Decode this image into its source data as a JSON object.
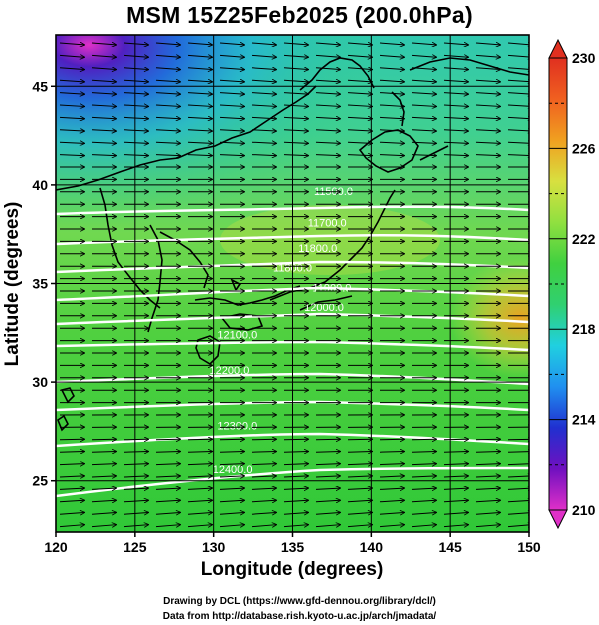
{
  "title": "MSM 15Z25Feb2025 (200.0hPa)",
  "x_axis": {
    "label": "Longitude (degrees)",
    "range": [
      120,
      150
    ],
    "ticks": [
      "120",
      "125",
      "130",
      "135",
      "140",
      "145",
      "150"
    ]
  },
  "y_axis": {
    "label": "Latitude  (degrees)",
    "range": [
      22.4,
      47.6
    ],
    "ticks": [
      "25",
      "30",
      "35",
      "40",
      "45"
    ]
  },
  "colorbar": {
    "range": [
      210,
      230
    ],
    "ticks": [
      "210",
      "214",
      "218",
      "222",
      "226",
      "230"
    ],
    "colors": [
      "#e030c8",
      "#7010c0",
      "#2030d0",
      "#2090f0",
      "#20d0e0",
      "#30d070",
      "#40d040",
      "#90e040",
      "#d8e040",
      "#f0a020",
      "#f06020",
      "#e03020"
    ]
  },
  "contour_labels": [
    {
      "text": "11500.0",
      "lon": 137.6,
      "lat": 39.5
    },
    {
      "text": "11700.0",
      "lon": 137.2,
      "lat": 37.9
    },
    {
      "text": "11800.0",
      "lon": 136.6,
      "lat": 36.6
    },
    {
      "text": "11800.0",
      "lon": 135.0,
      "lat": 35.6
    },
    {
      "text": "11900.0",
      "lon": 137.5,
      "lat": 34.6
    },
    {
      "text": "12000.0",
      "lon": 137.0,
      "lat": 33.6
    },
    {
      "text": "12100.0",
      "lon": 131.5,
      "lat": 32.2
    },
    {
      "text": "12200.0",
      "lon": 131.0,
      "lat": 30.4
    },
    {
      "text": "12300.0",
      "lon": 131.5,
      "lat": 27.6
    },
    {
      "text": "12400.0",
      "lon": 131.2,
      "lat": 25.4
    }
  ],
  "credits": {
    "line1": "Drawing by DCL (https://www.gfd-dennou.org/library/dcl/)",
    "line2": "Data from http://database.rish.kyoto-u.ac.jp/arch/jmadata/"
  }
}
